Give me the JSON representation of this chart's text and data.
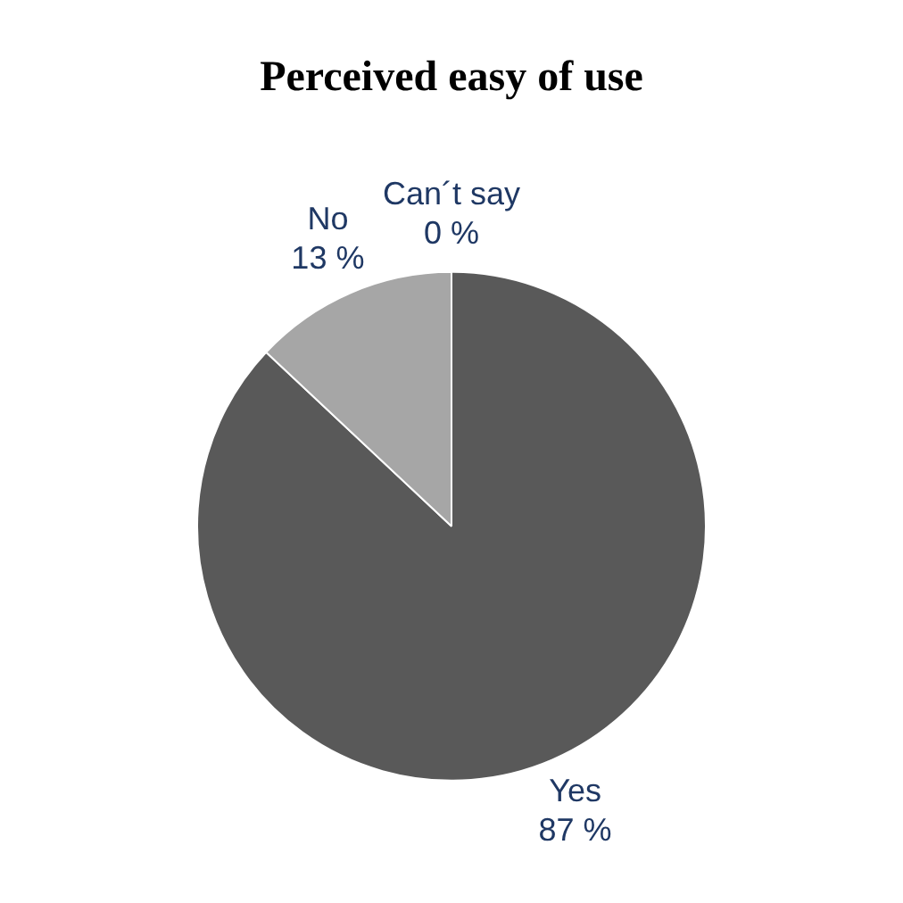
{
  "chart_data": {
    "type": "pie",
    "title": "Perceived easy of use",
    "categories": [
      "Yes",
      "No",
      "Can´t say"
    ],
    "values": [
      87,
      13,
      0
    ],
    "value_labels": [
      "87 %",
      "13 %",
      "0 %"
    ],
    "colors": [
      "#595959",
      "#a6a6a6",
      "#d9d9d9"
    ],
    "legend": false
  }
}
